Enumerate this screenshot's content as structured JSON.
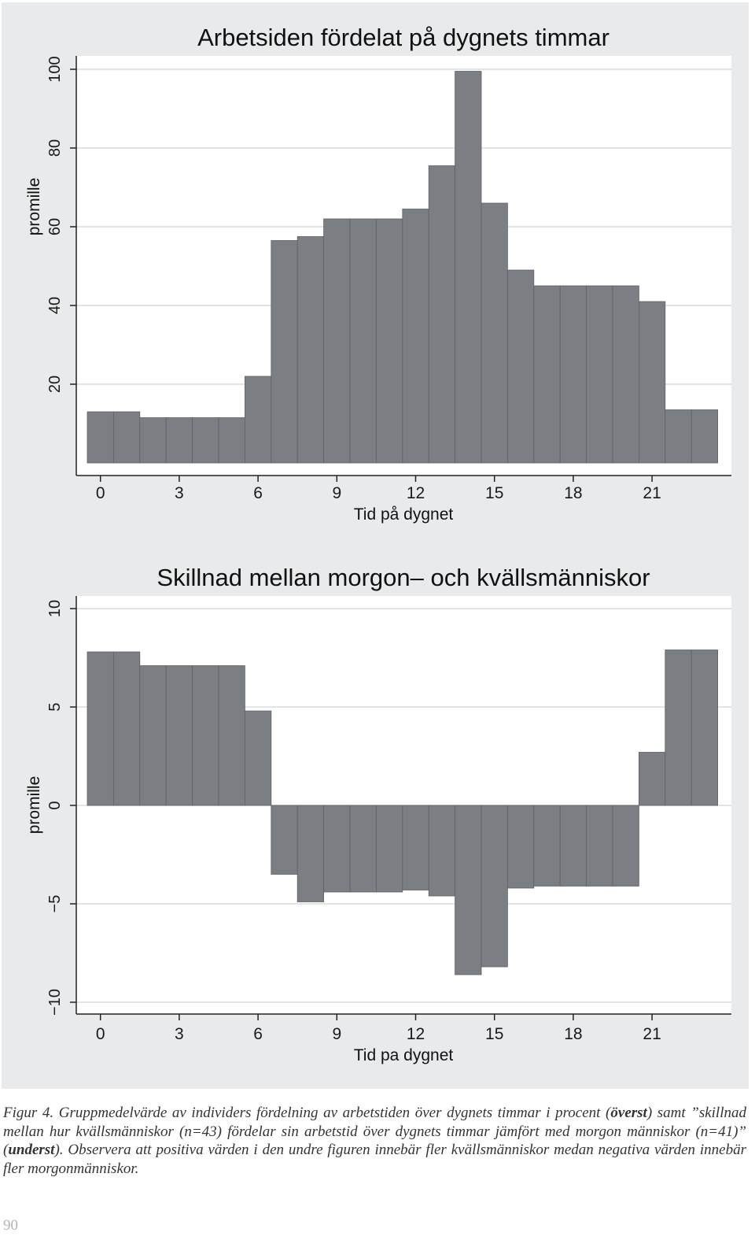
{
  "chart_data": [
    {
      "type": "bar",
      "title": "Arbetsiden fördelat på dygnets timmar",
      "xlabel": "Tid på dygnet",
      "ylabel": "promille",
      "x": [
        0,
        1,
        2,
        3,
        4,
        5,
        6,
        7,
        8,
        9,
        10,
        11,
        12,
        13,
        14,
        15,
        16,
        17,
        18,
        19,
        20,
        21,
        22,
        23
      ],
      "values": [
        13,
        13,
        11.5,
        11.5,
        11.5,
        11.5,
        22,
        56.5,
        57.5,
        62,
        62,
        62,
        64.5,
        75.5,
        99.5,
        66,
        49,
        45,
        45,
        45,
        45,
        41,
        13.5,
        13.5
      ],
      "x_ticks": [
        "0",
        "3",
        "6",
        "9",
        "12",
        "15",
        "18",
        "21"
      ],
      "y_ticks": [
        "20",
        "40",
        "60",
        "80",
        "100"
      ],
      "ylim": [
        0,
        102
      ],
      "grid": true
    },
    {
      "type": "bar",
      "title": "Skillnad mellan morgon– och kvällsmänniskor",
      "xlabel": "Tid pa dygnet",
      "ylabel": "promille",
      "x": [
        0,
        1,
        2,
        3,
        4,
        5,
        6,
        7,
        8,
        9,
        10,
        11,
        12,
        13,
        14,
        15,
        16,
        17,
        18,
        19,
        20,
        21,
        22,
        23
      ],
      "values": [
        7.8,
        7.8,
        7.1,
        7.1,
        7.1,
        7.1,
        4.8,
        -3.5,
        -4.9,
        -4.4,
        -4.4,
        -4.4,
        -4.3,
        -4.6,
        -8.6,
        -8.2,
        -4.2,
        -4.1,
        -4.1,
        -4.1,
        -4.1,
        2.7,
        7.9,
        7.9
      ],
      "x_ticks": [
        "0",
        "3",
        "6",
        "9",
        "12",
        "15",
        "18",
        "21"
      ],
      "y_ticks": [
        "−10",
        "−5",
        "0",
        "5",
        "10"
      ],
      "ylim": [
        -10.5,
        10.3
      ],
      "grid": true
    }
  ],
  "caption": {
    "lead": "Figur 4. Gruppmedelvärde av individers fördelning av arbetstiden över dygnets timmar i  procent (",
    "bold1": "överst",
    "mid": ") samt ”skillnad mellan hur kvällsmänniskor (n=43) fördelar sin arbetstid över dygnets timmar jämfört med morgon människor (n=41)” (",
    "bold2": "underst",
    "tail": "). Observera att positiva värden i den undre figuren innebär fler kvällsmänniskor medan negativa värden innebär fler morgonmänniskor."
  },
  "page_number": "90",
  "colors": {
    "panel": "#e8eaeb",
    "plot": "#ffffff",
    "bar": "#7b7e83",
    "grid": "#e2e4e6"
  }
}
